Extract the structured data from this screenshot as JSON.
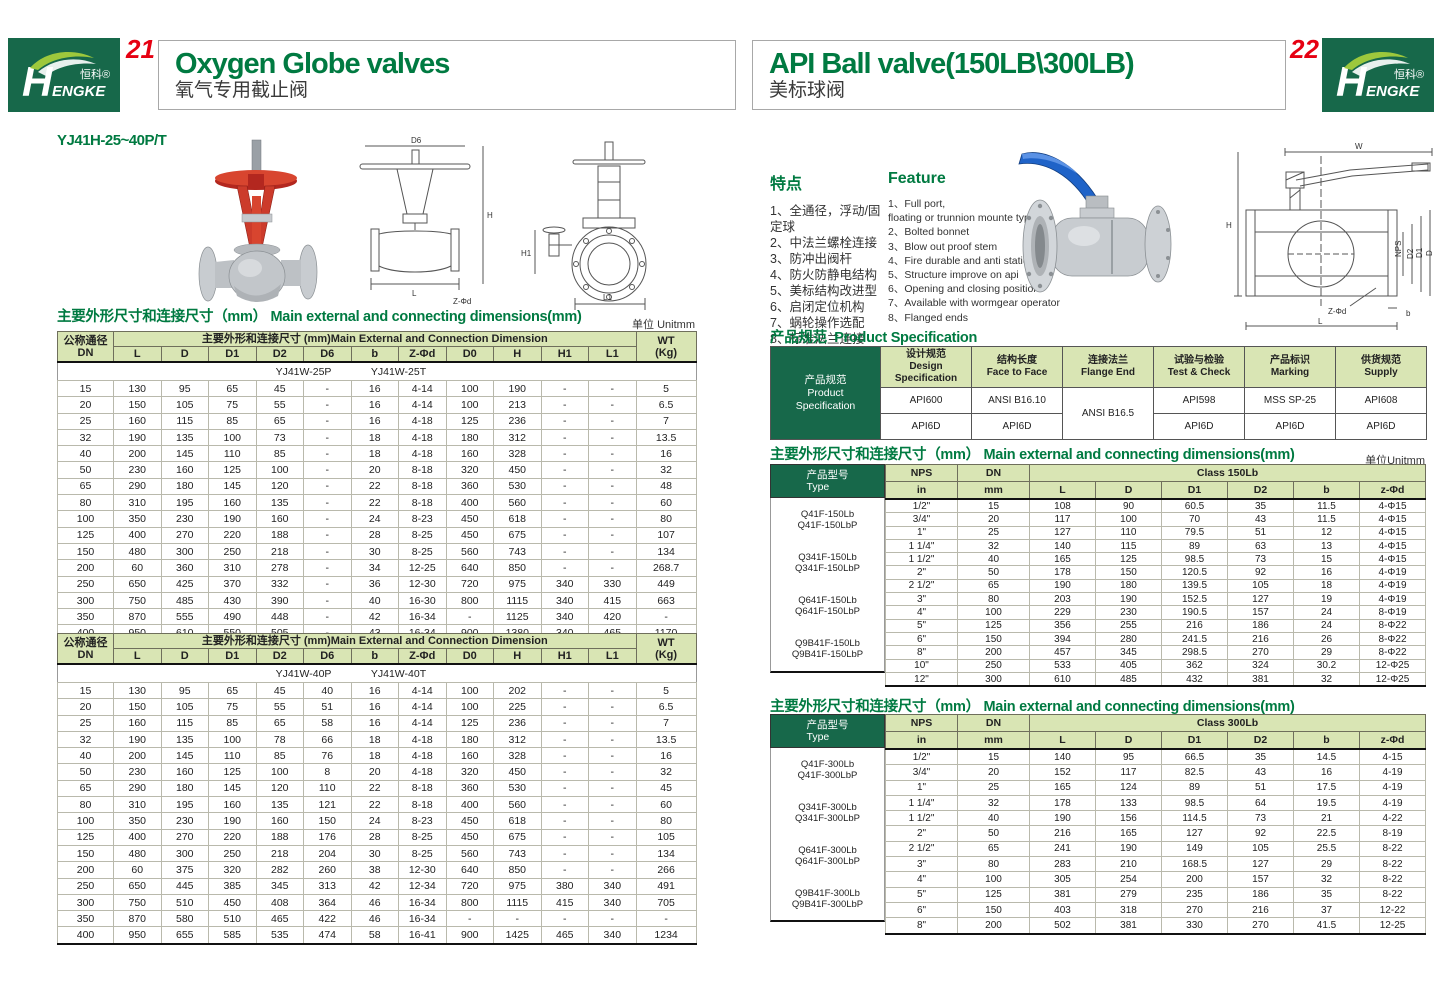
{
  "colors": {
    "brand_green": "#17684a",
    "title_green": "#007a41",
    "header_bg": "#d9e5b4",
    "page_red": "#e60012"
  },
  "logo": {
    "cn": "恒科®",
    "en_initial": "H",
    "en_rest": "ENGKE"
  },
  "page_left": {
    "page_number": "21",
    "title_en": "Oxygen Globe valves",
    "title_cn": "氧气专用截止阀",
    "model": "YJ41H-25~40P/T",
    "dims_title_cn": "主要外形尺寸和连接尺寸（mm）",
    "dims_title_en": "Main external and connecting dimensions(mm)",
    "unit_label": "单位 Unitmm",
    "drawing_labels": {
      "d6": "D6",
      "h": "H",
      "l": "L",
      "zfd": "Z-Φd",
      "h1": "H1",
      "l1": "L1"
    },
    "table": {
      "dn_cn": "公称通径",
      "dn_en": "DN",
      "group_header": "主要外形和连接尺寸 (mm)Main External and Connection Dimension",
      "wt_cn": "WT",
      "wt_en": "(Kg)",
      "columns": [
        "L",
        "D",
        "D1",
        "D2",
        "D6",
        "b",
        "Z-Φd",
        "D0",
        "H",
        "H1",
        "L1"
      ],
      "sections": [
        {
          "variant_p": "YJ41W-25P",
          "variant_t": "YJ41W-25T",
          "rows": [
            [
              "15",
              "130",
              "95",
              "65",
              "45",
              "-",
              "16",
              "4-14",
              "100",
              "190",
              "-",
              "-",
              "5"
            ],
            [
              "20",
              "150",
              "105",
              "75",
              "55",
              "-",
              "16",
              "4-14",
              "100",
              "213",
              "-",
              "-",
              "6.5"
            ],
            [
              "25",
              "160",
              "115",
              "85",
              "65",
              "-",
              "16",
              "4-18",
              "125",
              "236",
              "-",
              "-",
              "7"
            ],
            [
              "32",
              "190",
              "135",
              "100",
              "73",
              "-",
              "18",
              "4-18",
              "180",
              "312",
              "-",
              "-",
              "13.5"
            ],
            [
              "40",
              "200",
              "145",
              "110",
              "85",
              "-",
              "18",
              "4-18",
              "160",
              "328",
              "-",
              "-",
              "16"
            ],
            [
              "50",
              "230",
              "160",
              "125",
              "100",
              "-",
              "20",
              "8-18",
              "320",
              "450",
              "-",
              "-",
              "32"
            ],
            [
              "65",
              "290",
              "180",
              "145",
              "120",
              "-",
              "22",
              "8-18",
              "360",
              "530",
              "-",
              "-",
              "48"
            ],
            [
              "80",
              "310",
              "195",
              "160",
              "135",
              "-",
              "22",
              "8-18",
              "400",
              "560",
              "-",
              "-",
              "60"
            ],
            [
              "100",
              "350",
              "230",
              "190",
              "160",
              "-",
              "24",
              "8-23",
              "450",
              "618",
              "-",
              "-",
              "80"
            ],
            [
              "125",
              "400",
              "270",
              "220",
              "188",
              "-",
              "28",
              "8-25",
              "450",
              "675",
              "-",
              "-",
              "107"
            ],
            [
              "150",
              "480",
              "300",
              "250",
              "218",
              "-",
              "30",
              "8-25",
              "560",
              "743",
              "-",
              "-",
              "134"
            ],
            [
              "200",
              "60",
              "360",
              "310",
              "278",
              "-",
              "34",
              "12-25",
              "640",
              "850",
              "-",
              "-",
              "268.7"
            ],
            [
              "250",
              "650",
              "425",
              "370",
              "332",
              "-",
              "36",
              "12-30",
              "720",
              "975",
              "340",
              "330",
              "449"
            ],
            [
              "300",
              "750",
              "485",
              "430",
              "390",
              "-",
              "40",
              "16-30",
              "800",
              "1115",
              "340",
              "415",
              "663"
            ],
            [
              "350",
              "870",
              "555",
              "490",
              "448",
              "-",
              "42",
              "16-34",
              "-",
              "1125",
              "340",
              "420",
              "-"
            ],
            [
              "400",
              "950",
              "610",
              "550",
              "505",
              "-",
              "43",
              "16-34",
              "900",
              "1380",
              "340",
              "465",
              "1170"
            ]
          ]
        },
        {
          "variant_p": "YJ41W-40P",
          "variant_t": "YJ41W-40T",
          "rows": [
            [
              "15",
              "130",
              "95",
              "65",
              "45",
              "40",
              "16",
              "4-14",
              "100",
              "202",
              "-",
              "-",
              "5"
            ],
            [
              "20",
              "150",
              "105",
              "75",
              "55",
              "51",
              "16",
              "4-14",
              "100",
              "225",
              "-",
              "-",
              "6.5"
            ],
            [
              "25",
              "160",
              "115",
              "85",
              "65",
              "58",
              "16",
              "4-14",
              "125",
              "236",
              "-",
              "-",
              "7"
            ],
            [
              "32",
              "190",
              "135",
              "100",
              "78",
              "66",
              "18",
              "4-18",
              "180",
              "312",
              "-",
              "-",
              "13.5"
            ],
            [
              "40",
              "200",
              "145",
              "110",
              "85",
              "76",
              "18",
              "4-18",
              "160",
              "328",
              "-",
              "-",
              "16"
            ],
            [
              "50",
              "230",
              "160",
              "125",
              "100",
              "8",
              "20",
              "4-18",
              "320",
              "450",
              "-",
              "-",
              "32"
            ],
            [
              "65",
              "290",
              "180",
              "145",
              "120",
              "110",
              "22",
              "8-18",
              "360",
              "530",
              "-",
              "-",
              "45"
            ],
            [
              "80",
              "310",
              "195",
              "160",
              "135",
              "121",
              "22",
              "8-18",
              "400",
              "560",
              "-",
              "-",
              "60"
            ],
            [
              "100",
              "350",
              "230",
              "190",
              "160",
              "150",
              "24",
              "8-23",
              "450",
              "618",
              "-",
              "-",
              "80"
            ],
            [
              "125",
              "400",
              "270",
              "220",
              "188",
              "176",
              "28",
              "8-25",
              "450",
              "675",
              "-",
              "-",
              "105"
            ],
            [
              "150",
              "480",
              "300",
              "250",
              "218",
              "204",
              "30",
              "8-25",
              "560",
              "743",
              "-",
              "-",
              "134"
            ],
            [
              "200",
              "60",
              "375",
              "320",
              "282",
              "260",
              "38",
              "12-30",
              "640",
              "850",
              "-",
              "-",
              "266"
            ],
            [
              "250",
              "650",
              "445",
              "385",
              "345",
              "313",
              "42",
              "12-34",
              "720",
              "975",
              "380",
              "340",
              "491"
            ],
            [
              "300",
              "750",
              "510",
              "450",
              "408",
              "364",
              "46",
              "16-34",
              "800",
              "1115",
              "415",
              "340",
              "705"
            ],
            [
              "350",
              "870",
              "580",
              "510",
              "465",
              "422",
              "46",
              "16-34",
              "-",
              "-",
              "-",
              "-",
              "-"
            ],
            [
              "400",
              "950",
              "655",
              "585",
              "535",
              "474",
              "58",
              "16-41",
              "900",
              "1425",
              "465",
              "340",
              "1234"
            ]
          ]
        }
      ]
    }
  },
  "page_right": {
    "page_number": "22",
    "title_en": "API Ball valve(150LB\\300LB)",
    "title_cn": "美标球阀",
    "features_cn": {
      "heading": "特点",
      "items": [
        "1、全通径，浮动/固定球",
        "2、中法兰螺栓连接",
        "3、防冲出阀杆",
        "4、防火防静电结构",
        "5、美标结构改进型",
        "6、启闭定位机构",
        "7、蜗轮操作选配",
        "8、标准法兰连接"
      ]
    },
    "features_en": {
      "heading": "Feature",
      "items": [
        "1、Full port,\n      floating or trunnion mounte type",
        "2、Bolted bonnet",
        "3、Blow out proof stem",
        "4、Fire durable and anti static safety",
        "5、Structure improve on api",
        "6、Opening and closing position",
        "7、Available with wormgear operator",
        "8、Flanged ends"
      ]
    },
    "drawing_labels": {
      "w": "W",
      "h": "H",
      "nps": "NPS",
      "d2": "D2",
      "d1": "D1",
      "d": "D",
      "zfd": "Z-Φd",
      "b": "b",
      "l": "L"
    },
    "spec": {
      "title_cn": "产品规范",
      "title_en": "Product Specification",
      "row_header": "产品规范\nProduct\nSpecification",
      "columns": [
        {
          "cn": "设计规范",
          "en": "Design Specification"
        },
        {
          "cn": "结构长度",
          "en": "Face to Face"
        },
        {
          "cn": "连接法兰",
          "en": "Flange End"
        },
        {
          "cn": "试验与检验",
          "en": "Test & Check"
        },
        {
          "cn": "产品标识",
          "en": "Marking"
        },
        {
          "cn": "供货规范",
          "en": "Supply"
        }
      ],
      "row1": [
        "API600",
        "ANSI B16.10",
        "ANSI B16.5",
        "API598",
        "MSS SP-25",
        "API608"
      ],
      "row2": [
        "API6D",
        "API6D",
        "API6D",
        "API6D",
        "API6D"
      ]
    },
    "table150": {
      "title_cn": "主要外形尺寸和连接尺寸（mm）",
      "title_en": "Main external and connecting dimensions(mm)",
      "unit_label": "单位Unitmm",
      "type_header": "产品型号\nType",
      "nps_label": "NPS",
      "dn_label": "DN",
      "in_label": "in",
      "mm_label": "mm",
      "class_label": "Class 150Lb",
      "columns": [
        "L",
        "D",
        "D1",
        "D2",
        "b",
        "z-Φd"
      ],
      "types": [
        [
          "Q41F-150Lb",
          "Q41F-150LbP"
        ],
        [
          "Q341F-150Lb",
          "Q341F-150LbP"
        ],
        [
          "Q641F-150Lb",
          "Q641F-150LbP"
        ],
        [
          "Q9B41F-150Lb",
          "Q9B41F-150LbP"
        ]
      ],
      "rows": [
        [
          "1/2\"",
          "15",
          "108",
          "90",
          "60.5",
          "35",
          "11.5",
          "4-Φ15"
        ],
        [
          "3/4\"",
          "20",
          "117",
          "100",
          "70",
          "43",
          "11.5",
          "4-Φ15"
        ],
        [
          "1\"",
          "25",
          "127",
          "110",
          "79.5",
          "51",
          "12",
          "4-Φ15"
        ],
        [
          "1 1/4\"",
          "32",
          "140",
          "115",
          "89",
          "63",
          "13",
          "4-Φ15"
        ],
        [
          "1 1/2\"",
          "40",
          "165",
          "125",
          "98.5",
          "73",
          "15",
          "4-Φ15"
        ],
        [
          "2\"",
          "50",
          "178",
          "150",
          "120.5",
          "92",
          "16",
          "4-Φ19"
        ],
        [
          "2 1/2\"",
          "65",
          "190",
          "180",
          "139.5",
          "105",
          "18",
          "4-Φ19"
        ],
        [
          "3\"",
          "80",
          "203",
          "190",
          "152.5",
          "127",
          "19",
          "4-Φ19"
        ],
        [
          "4\"",
          "100",
          "229",
          "230",
          "190.5",
          "157",
          "24",
          "8-Φ19"
        ],
        [
          "5\"",
          "125",
          "356",
          "255",
          "216",
          "186",
          "24",
          "8-Φ22"
        ],
        [
          "6\"",
          "150",
          "394",
          "280",
          "241.5",
          "216",
          "26",
          "8-Φ22"
        ],
        [
          "8\"",
          "200",
          "457",
          "345",
          "298.5",
          "270",
          "29",
          "8-Φ22"
        ],
        [
          "10\"",
          "250",
          "533",
          "405",
          "362",
          "324",
          "30.2",
          "12-Φ25"
        ],
        [
          "12\"",
          "300",
          "610",
          "485",
          "432",
          "381",
          "32",
          "12-Φ25"
        ]
      ]
    },
    "table300": {
      "title_cn": "主要外形尺寸和连接尺寸（mm）",
      "title_en": "Main external and connecting dimensions(mm)",
      "type_header": "产品型号\nType",
      "nps_label": "NPS",
      "dn_label": "DN",
      "in_label": "in",
      "mm_label": "mm",
      "class_label": "Class 300Lb",
      "columns": [
        "L",
        "D",
        "D1",
        "D2",
        "b",
        "z-Φd"
      ],
      "types": [
        [
          "Q41F-300Lb",
          "Q41F-300LbP"
        ],
        [
          "Q341F-300Lb",
          "Q341F-300LbP"
        ],
        [
          "Q641F-300Lb",
          "Q641F-300LbP"
        ],
        [
          "Q9B41F-300Lb",
          "Q9B41F-300LbP"
        ]
      ],
      "rows": [
        [
          "1/2\"",
          "15",
          "140",
          "95",
          "66.5",
          "35",
          "14.5",
          "4-15"
        ],
        [
          "3/4\"",
          "20",
          "152",
          "117",
          "82.5",
          "43",
          "16",
          "4-19"
        ],
        [
          "1\"",
          "25",
          "165",
          "124",
          "89",
          "51",
          "17.5",
          "4-19"
        ],
        [
          "1 1/4\"",
          "32",
          "178",
          "133",
          "98.5",
          "64",
          "19.5",
          "4-19"
        ],
        [
          "1 1/2\"",
          "40",
          "190",
          "156",
          "114.5",
          "73",
          "21",
          "4-22"
        ],
        [
          "2\"",
          "50",
          "216",
          "165",
          "127",
          "92",
          "22.5",
          "8-19"
        ],
        [
          "2 1/2\"",
          "65",
          "241",
          "190",
          "149",
          "105",
          "25.5",
          "8-22"
        ],
        [
          "3\"",
          "80",
          "283",
          "210",
          "168.5",
          "127",
          "29",
          "8-22"
        ],
        [
          "4\"",
          "100",
          "305",
          "254",
          "200",
          "157",
          "32",
          "8-22"
        ],
        [
          "5\"",
          "125",
          "381",
          "279",
          "235",
          "186",
          "35",
          "8-22"
        ],
        [
          "6\"",
          "150",
          "403",
          "318",
          "270",
          "216",
          "37",
          "12-22"
        ],
        [
          "8\"",
          "200",
          "502",
          "381",
          "330",
          "270",
          "41.5",
          "12-25"
        ]
      ]
    }
  }
}
